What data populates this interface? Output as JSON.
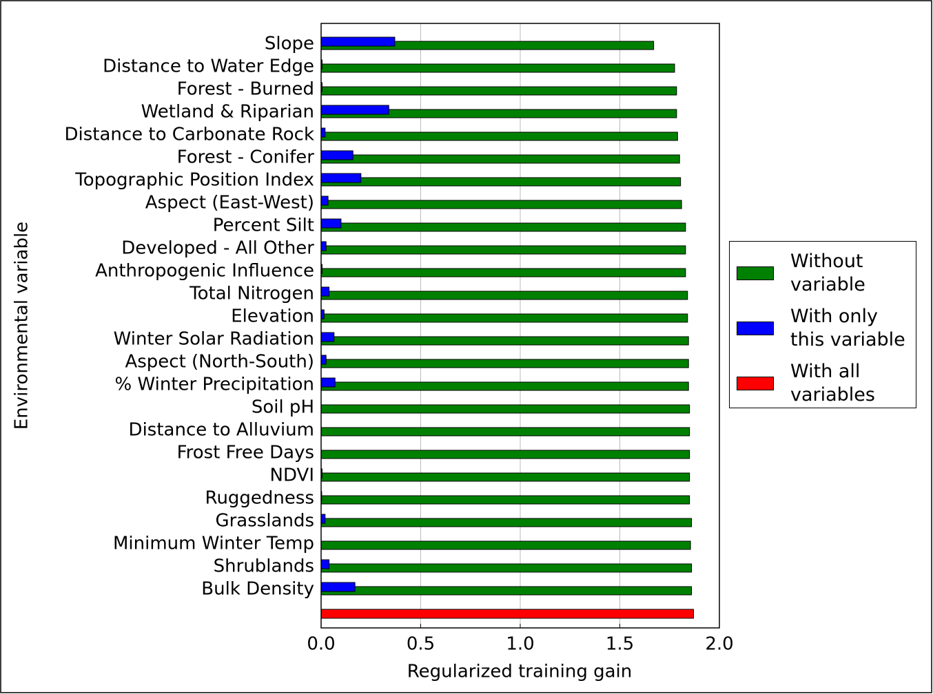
{
  "chart_data": {
    "type": "barh",
    "xlabel": "Regularized training gain",
    "ylabel": "Environmental variable",
    "categories": [
      "Slope",
      "Distance to Water Edge",
      "Forest - Burned",
      "Wetland & Riparian",
      "Distance to Carbonate Rock",
      "Forest - Conifer",
      "Topographic Position Index",
      "Aspect (East-West)",
      "Percent Silt",
      "Developed - All Other",
      "Anthropogenic Influence",
      "Total Nitrogen",
      "Elevation",
      "Winter Solar Radiation",
      "Aspect (North-South)",
      "% Winter Precipitation",
      "Soil pH",
      "Distance to Alluvium",
      "Frost Free Days",
      "NDVI",
      "Ruggedness",
      "Grasslands",
      "Minimum Winter Temp",
      "Shrublands",
      "Bulk Density",
      null
    ],
    "series": [
      {
        "name": "Without variable",
        "color": "#008000",
        "values": [
          1.67,
          1.775,
          1.785,
          1.785,
          1.79,
          1.8,
          1.805,
          1.81,
          1.83,
          1.83,
          1.83,
          1.84,
          1.84,
          1.845,
          1.845,
          1.845,
          1.85,
          1.85,
          1.85,
          1.85,
          1.85,
          1.86,
          1.855,
          1.86,
          1.86,
          null
        ]
      },
      {
        "name": "With only this variable",
        "color": "#0000ff",
        "values": [
          0.37,
          0.005,
          0.005,
          0.34,
          0.02,
          0.16,
          0.2,
          0.035,
          0.1,
          0.025,
          0.005,
          0.04,
          0.015,
          0.065,
          0.025,
          0.07,
          0,
          0,
          0,
          0.005,
          0.003,
          0.02,
          0,
          0.04,
          0.17,
          null
        ]
      },
      {
        "name": "With all variables",
        "color": "#ff0000",
        "values": [
          null,
          null,
          null,
          null,
          null,
          null,
          null,
          null,
          null,
          null,
          null,
          null,
          null,
          null,
          null,
          null,
          null,
          null,
          null,
          null,
          null,
          null,
          null,
          null,
          null,
          1.87
        ]
      }
    ],
    "xlim": [
      0,
      2
    ],
    "xticks": [
      {
        "value": 0,
        "label": "0.0"
      },
      0.5,
      {
        "value": 1,
        "label": "1.0"
      },
      1.5,
      {
        "value": 2,
        "label": "2.0"
      }
    ],
    "grid": true,
    "legend": "right"
  }
}
